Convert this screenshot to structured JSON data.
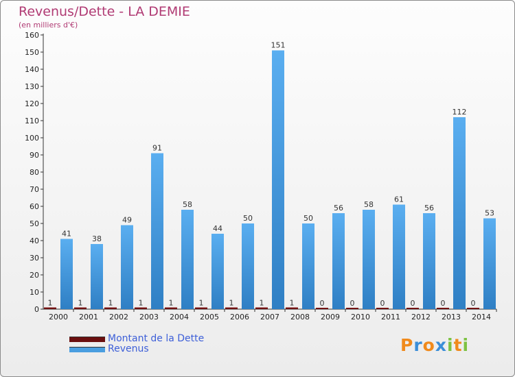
{
  "header": {
    "title": "Revenus/Dette - LA DEMIE",
    "subtitle": "(en milliers d'€)"
  },
  "legend": {
    "items": [
      {
        "label": "Montant de la Dette",
        "color": "#6b0f0f"
      },
      {
        "label": "Revenus",
        "color": "#4a9ee0"
      }
    ]
  },
  "brand": {
    "letters": [
      "P",
      "r",
      "o",
      "x",
      "i",
      "t",
      "i"
    ],
    "colors": [
      "#f08a1c",
      "#3b8ed8",
      "#f08a1c",
      "#3b8ed8",
      "#7dc242",
      "#f08a1c",
      "#7dc242"
    ]
  },
  "chart_data": {
    "type": "bar",
    "title": "Revenus/Dette - LA DEMIE",
    "subtitle": "(en milliers d'€)",
    "categories": [
      "2000",
      "2001",
      "2002",
      "2003",
      "2004",
      "2005",
      "2006",
      "2007",
      "2008",
      "2009",
      "2010",
      "2011",
      "2012",
      "2013",
      "2014"
    ],
    "series": [
      {
        "name": "Montant de la Dette",
        "color": "#6b0f0f",
        "values": [
          1,
          1,
          1,
          1,
          1,
          1,
          1,
          1,
          1,
          0,
          0,
          0,
          0,
          0,
          0
        ]
      },
      {
        "name": "Revenus",
        "color": "#4a9ee0",
        "values": [
          41,
          38,
          49,
          91,
          58,
          44,
          50,
          151,
          50,
          56,
          58,
          61,
          56,
          112,
          53
        ]
      }
    ],
    "ylim": [
      0,
      160
    ],
    "yticks": [
      0,
      10,
      20,
      30,
      40,
      50,
      60,
      70,
      80,
      90,
      100,
      110,
      120,
      130,
      140,
      150,
      160
    ],
    "grid": false,
    "legend_position": "bottom-left"
  }
}
